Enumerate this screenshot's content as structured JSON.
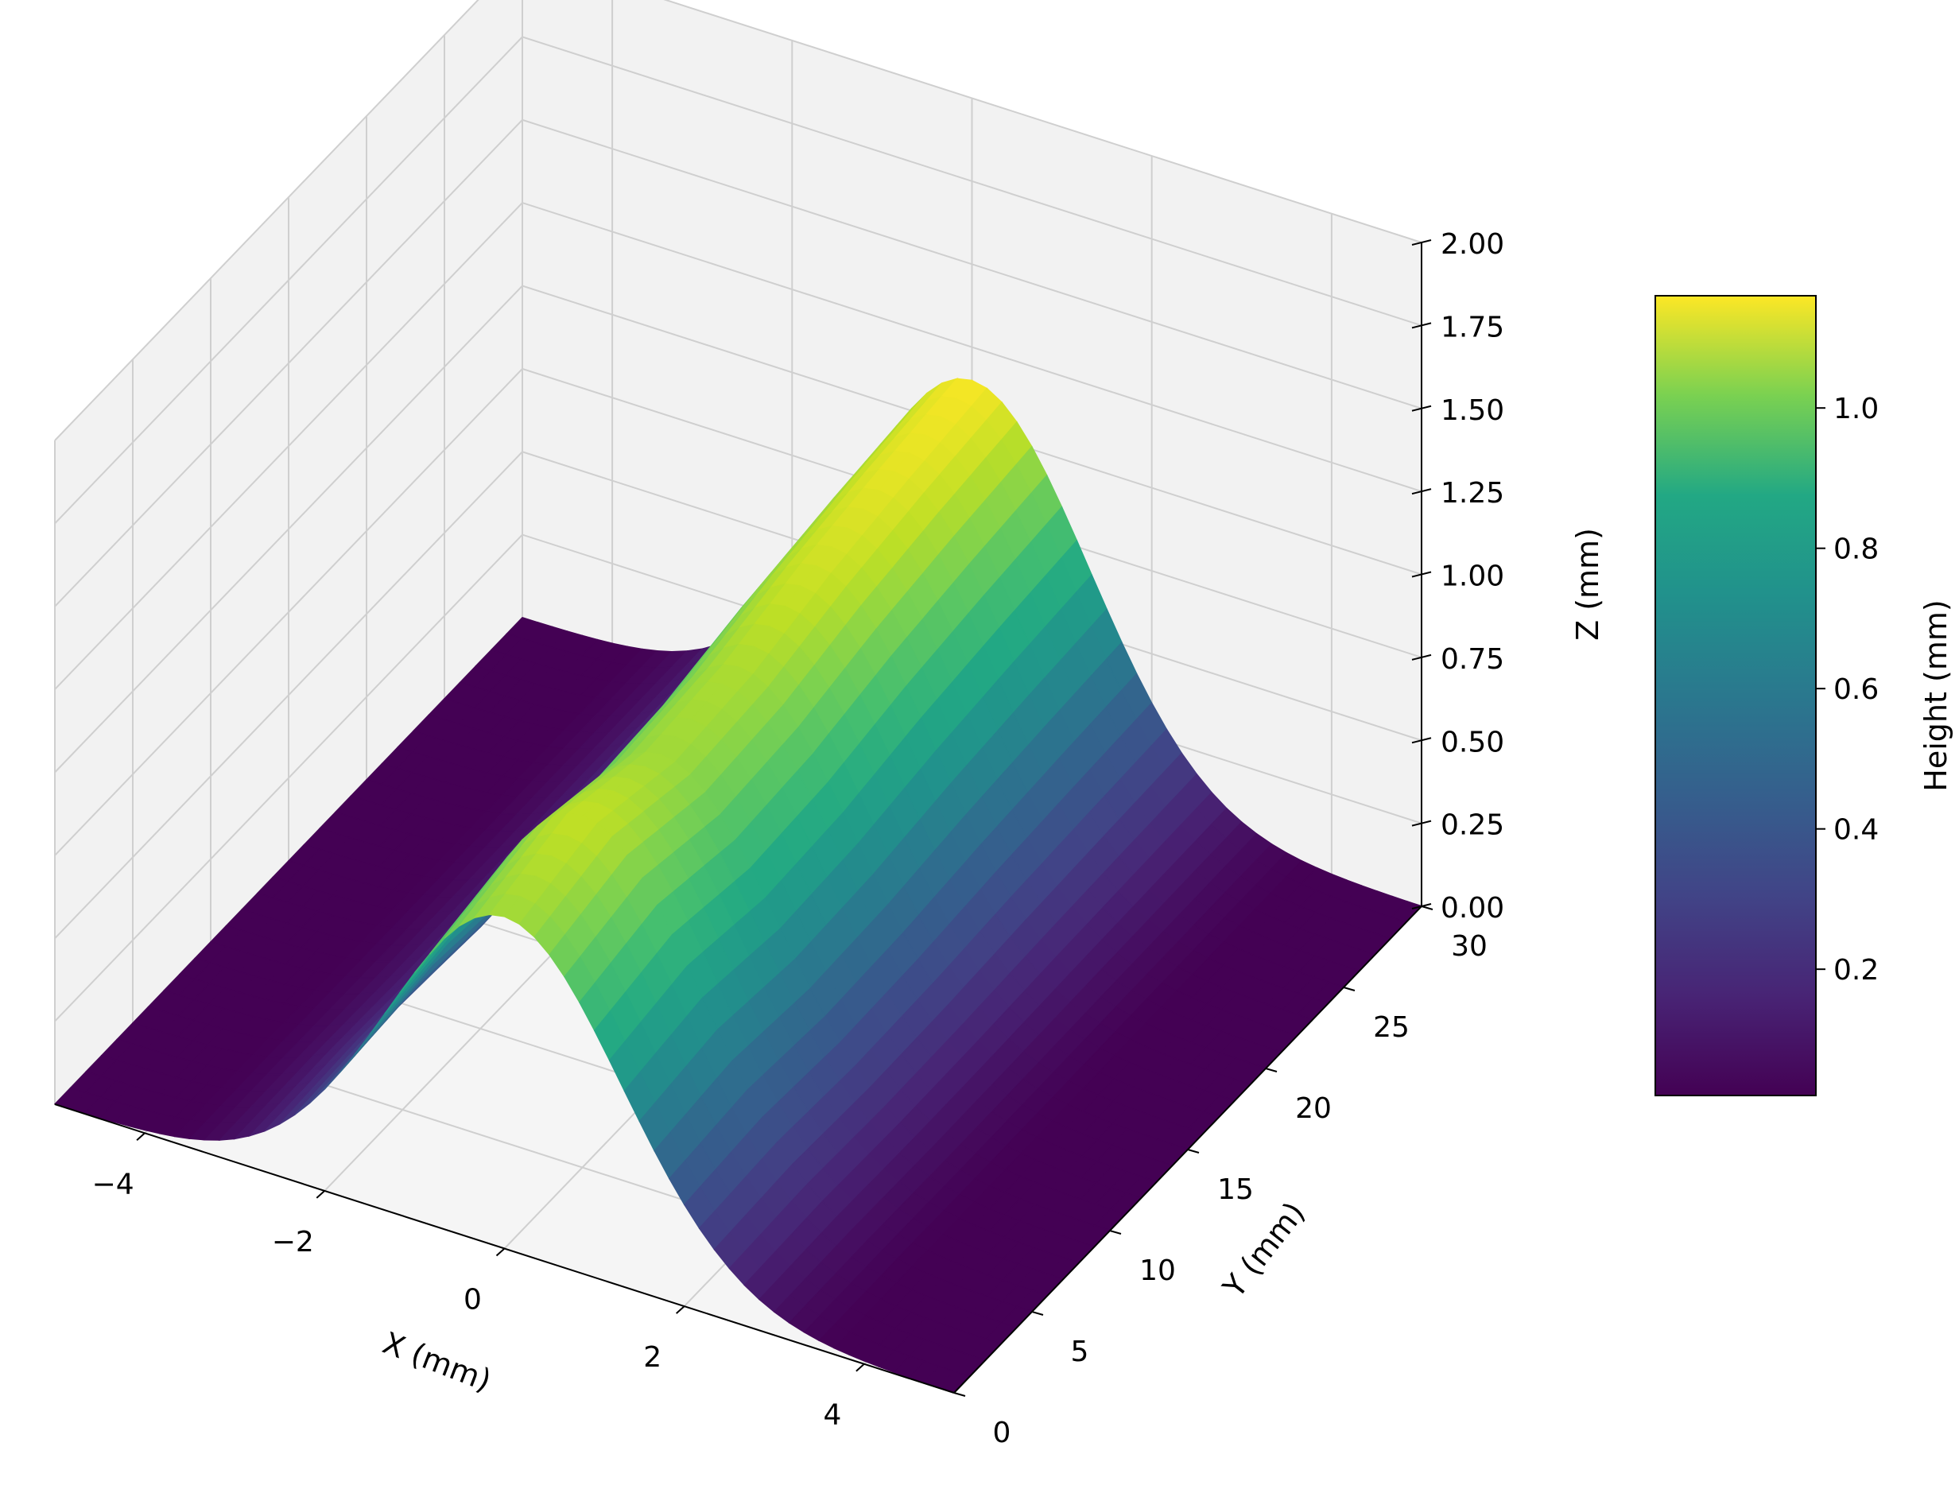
{
  "chart_data": {
    "type": "surface3d",
    "title": "",
    "colormap": "viridis",
    "xlabel": "X (mm)",
    "ylabel": "Y (mm)",
    "zlabel": "Z (mm)",
    "xlim": [
      -5,
      5
    ],
    "ylim": [
      0,
      30
    ],
    "zlim": [
      0,
      2
    ],
    "x_ticks": [
      -4,
      -2,
      0,
      2,
      4
    ],
    "x_tick_labels": [
      "−4",
      "−2",
      "0",
      "2",
      "4"
    ],
    "y_ticks": [
      0,
      5,
      10,
      15,
      20,
      25,
      30
    ],
    "y_tick_labels": [
      "0",
      "5",
      "10",
      "15",
      "20",
      "25",
      "30"
    ],
    "z_ticks": [
      0,
      0.25,
      0.5,
      0.75,
      1.0,
      1.25,
      1.5,
      1.75,
      2.0
    ],
    "z_tick_labels": [
      "0.00",
      "0.25",
      "0.50",
      "0.75",
      "1.00",
      "1.25",
      "1.50",
      "1.75",
      "2.00"
    ],
    "grid": true,
    "surface": {
      "description_values": "Gaussian ridge along Y: z = a(y) * exp(-x^2 / (2*s^2))",
      "sigma_x": 1.3,
      "y_samples": [
        0,
        5,
        10,
        15,
        20,
        25,
        30
      ],
      "peak_height": [
        1.0,
        1.06,
        1.0,
        1.02,
        1.08,
        1.12,
        1.15
      ]
    },
    "colorbar": {
      "label": "Height (mm)",
      "range": [
        0.02,
        1.16
      ],
      "ticks": [
        0.2,
        0.4,
        0.6,
        0.8,
        1.0
      ],
      "tick_labels": [
        "0.2",
        "0.4",
        "0.6",
        "0.8",
        "1.0"
      ]
    }
  },
  "colors": {
    "pane_left": "#f2f2f2",
    "pane_back": "#f2f2f2",
    "pane_floor": "#f5f5f5",
    "grid": "#cfcfcf",
    "axis": "#000000"
  }
}
